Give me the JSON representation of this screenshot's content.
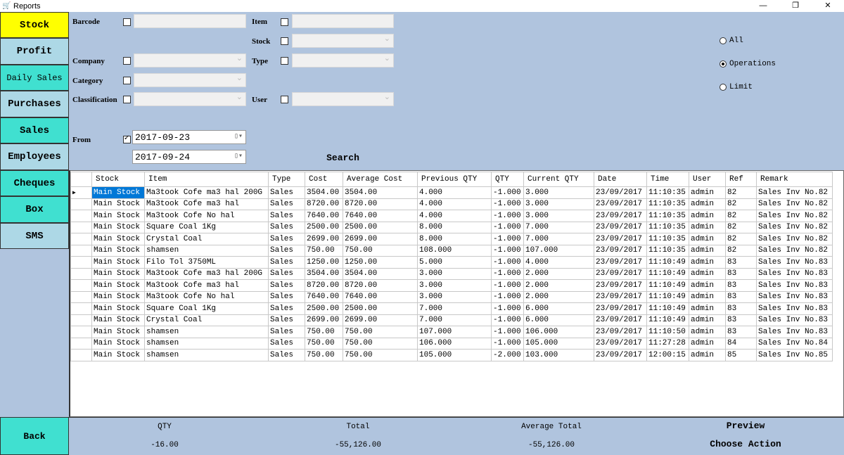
{
  "window": {
    "title": "Reports",
    "controls": [
      "—",
      "❐",
      "✕"
    ]
  },
  "sidebar": {
    "items": [
      {
        "label": "Stock",
        "color": "#ffff00"
      },
      {
        "label": "Profit",
        "color": "#add8e6"
      },
      {
        "label": "Daily Sales",
        "color": "#40e0d0"
      },
      {
        "label": "Purchases",
        "color": "#add8e6"
      },
      {
        "label": "Sales",
        "color": "#40e0d0"
      },
      {
        "label": "Employees",
        "color": "#add8e6"
      },
      {
        "label": "Cheques",
        "color": "#40e0d0"
      },
      {
        "label": "Box",
        "color": "#40e0d0"
      },
      {
        "label": "SMS",
        "color": "#add8e6"
      }
    ],
    "back": "Back"
  },
  "filters": {
    "barcode": "Barcode",
    "item": "Item",
    "stock": "Stock",
    "company": "Company",
    "type": "Type",
    "category": "Category",
    "classification": "Classification",
    "user": "User",
    "from": "From",
    "from_date": "2017-09-23",
    "to_date": "2017-09-24",
    "from_checked": true,
    "search": "Search"
  },
  "options": {
    "all": "All",
    "operations": "Operations",
    "limit": "Limit",
    "selected": "Operations"
  },
  "table": {
    "columns": [
      "Stock",
      "Item",
      "Type",
      "Cost",
      "Average Cost",
      "Previous QTY",
      "QTY",
      "Current QTY",
      "Date",
      "Time",
      "User",
      "Ref",
      "Remark"
    ],
    "rows": [
      [
        "Main Stock",
        "Ma3took Cofe ma3 hal 200G",
        "Sales",
        "3504.00",
        "3504.00",
        "4.000",
        "-1.000",
        "3.000",
        "23/09/2017",
        "11:10:35",
        "admin",
        "82",
        "Sales Inv No.82"
      ],
      [
        "Main Stock",
        "Ma3took Cofe ma3 hal",
        "Sales",
        "8720.00",
        "8720.00",
        "4.000",
        "-1.000",
        "3.000",
        "23/09/2017",
        "11:10:35",
        "admin",
        "82",
        "Sales Inv No.82"
      ],
      [
        "Main Stock",
        "Ma3took Cofe No hal",
        "Sales",
        "7640.00",
        "7640.00",
        "4.000",
        "-1.000",
        "3.000",
        "23/09/2017",
        "11:10:35",
        "admin",
        "82",
        "Sales Inv No.82"
      ],
      [
        "Main Stock",
        "Square Coal 1Kg",
        "Sales",
        "2500.00",
        "2500.00",
        "8.000",
        "-1.000",
        "7.000",
        "23/09/2017",
        "11:10:35",
        "admin",
        "82",
        "Sales Inv No.82"
      ],
      [
        "Main Stock",
        "Crystal Coal",
        "Sales",
        "2699.00",
        "2699.00",
        "8.000",
        "-1.000",
        "7.000",
        "23/09/2017",
        "11:10:35",
        "admin",
        "82",
        "Sales Inv No.82"
      ],
      [
        "Main Stock",
        "shamsen",
        "Sales",
        "750.00",
        "750.00",
        "108.000",
        "-1.000",
        "107.000",
        "23/09/2017",
        "11:10:35",
        "admin",
        "82",
        "Sales Inv No.82"
      ],
      [
        "Main Stock",
        "Filo Tol 3750ML",
        "Sales",
        "1250.00",
        "1250.00",
        "5.000",
        "-1.000",
        "4.000",
        "23/09/2017",
        "11:10:49",
        "admin",
        "83",
        "Sales Inv No.83"
      ],
      [
        "Main Stock",
        "Ma3took Cofe ma3 hal 200G",
        "Sales",
        "3504.00",
        "3504.00",
        "3.000",
        "-1.000",
        "2.000",
        "23/09/2017",
        "11:10:49",
        "admin",
        "83",
        "Sales Inv No.83"
      ],
      [
        "Main Stock",
        "Ma3took Cofe ma3 hal",
        "Sales",
        "8720.00",
        "8720.00",
        "3.000",
        "-1.000",
        "2.000",
        "23/09/2017",
        "11:10:49",
        "admin",
        "83",
        "Sales Inv No.83"
      ],
      [
        "Main Stock",
        "Ma3took Cofe No hal",
        "Sales",
        "7640.00",
        "7640.00",
        "3.000",
        "-1.000",
        "2.000",
        "23/09/2017",
        "11:10:49",
        "admin",
        "83",
        "Sales Inv No.83"
      ],
      [
        "Main Stock",
        "Square Coal 1Kg",
        "Sales",
        "2500.00",
        "2500.00",
        "7.000",
        "-1.000",
        "6.000",
        "23/09/2017",
        "11:10:49",
        "admin",
        "83",
        "Sales Inv No.83"
      ],
      [
        "Main Stock",
        "Crystal Coal",
        "Sales",
        "2699.00",
        "2699.00",
        "7.000",
        "-1.000",
        "6.000",
        "23/09/2017",
        "11:10:49",
        "admin",
        "83",
        "Sales Inv No.83"
      ],
      [
        "Main Stock",
        "shamsen",
        "Sales",
        "750.00",
        "750.00",
        "107.000",
        "-1.000",
        "106.000",
        "23/09/2017",
        "11:10:50",
        "admin",
        "83",
        "Sales Inv No.83"
      ],
      [
        "Main Stock",
        "shamsen",
        "Sales",
        "750.00",
        "750.00",
        "106.000",
        "-1.000",
        "105.000",
        "23/09/2017",
        "11:27:28",
        "admin",
        "84",
        "Sales Inv No.84"
      ],
      [
        "Main Stock",
        "shamsen",
        "Sales",
        "750.00",
        "750.00",
        "105.000",
        "-2.000",
        "103.000",
        "23/09/2017",
        "12:00:15",
        "admin",
        "85",
        "Sales Inv No.85"
      ]
    ]
  },
  "footer": {
    "qty_label": "QTY",
    "qty": "-16.00",
    "total_label": "Total",
    "total": "-55,126.00",
    "avg_label": "Average Total",
    "avg": "-55,126.00",
    "preview": "Preview",
    "choose_action": "Choose Action"
  }
}
